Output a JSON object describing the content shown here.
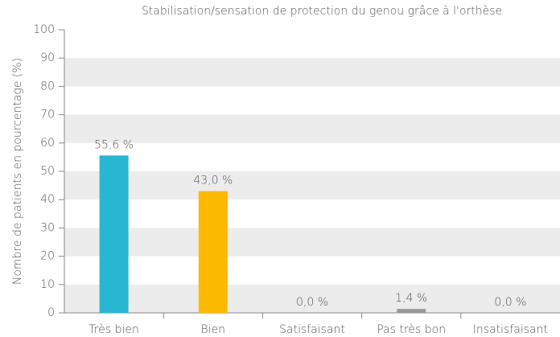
{
  "chart_data": {
    "type": "bar",
    "title": "Stabilisation/sensation de protection du genou grâce à l'orthèse",
    "y_label": "Nombre de patients en pourcentage (%)",
    "categories": [
      "Très bien",
      "Bien",
      "Satisfaisant",
      "Pas très bon",
      "Insatisfaisant"
    ],
    "values": [
      55.6,
      43.0,
      0.0,
      1.4,
      0.0
    ],
    "value_labels": [
      "55,6 %",
      "43,0 %",
      "0,0 %",
      "1,4 %",
      "0,0 %"
    ],
    "colors": [
      "#29b6d2",
      "#fbb900",
      "#999999",
      "#999999",
      "#999999"
    ],
    "ylim": [
      0,
      100
    ],
    "yticks": [
      0,
      10,
      20,
      30,
      40,
      50,
      60,
      70,
      80,
      90,
      100
    ],
    "grid": true
  }
}
